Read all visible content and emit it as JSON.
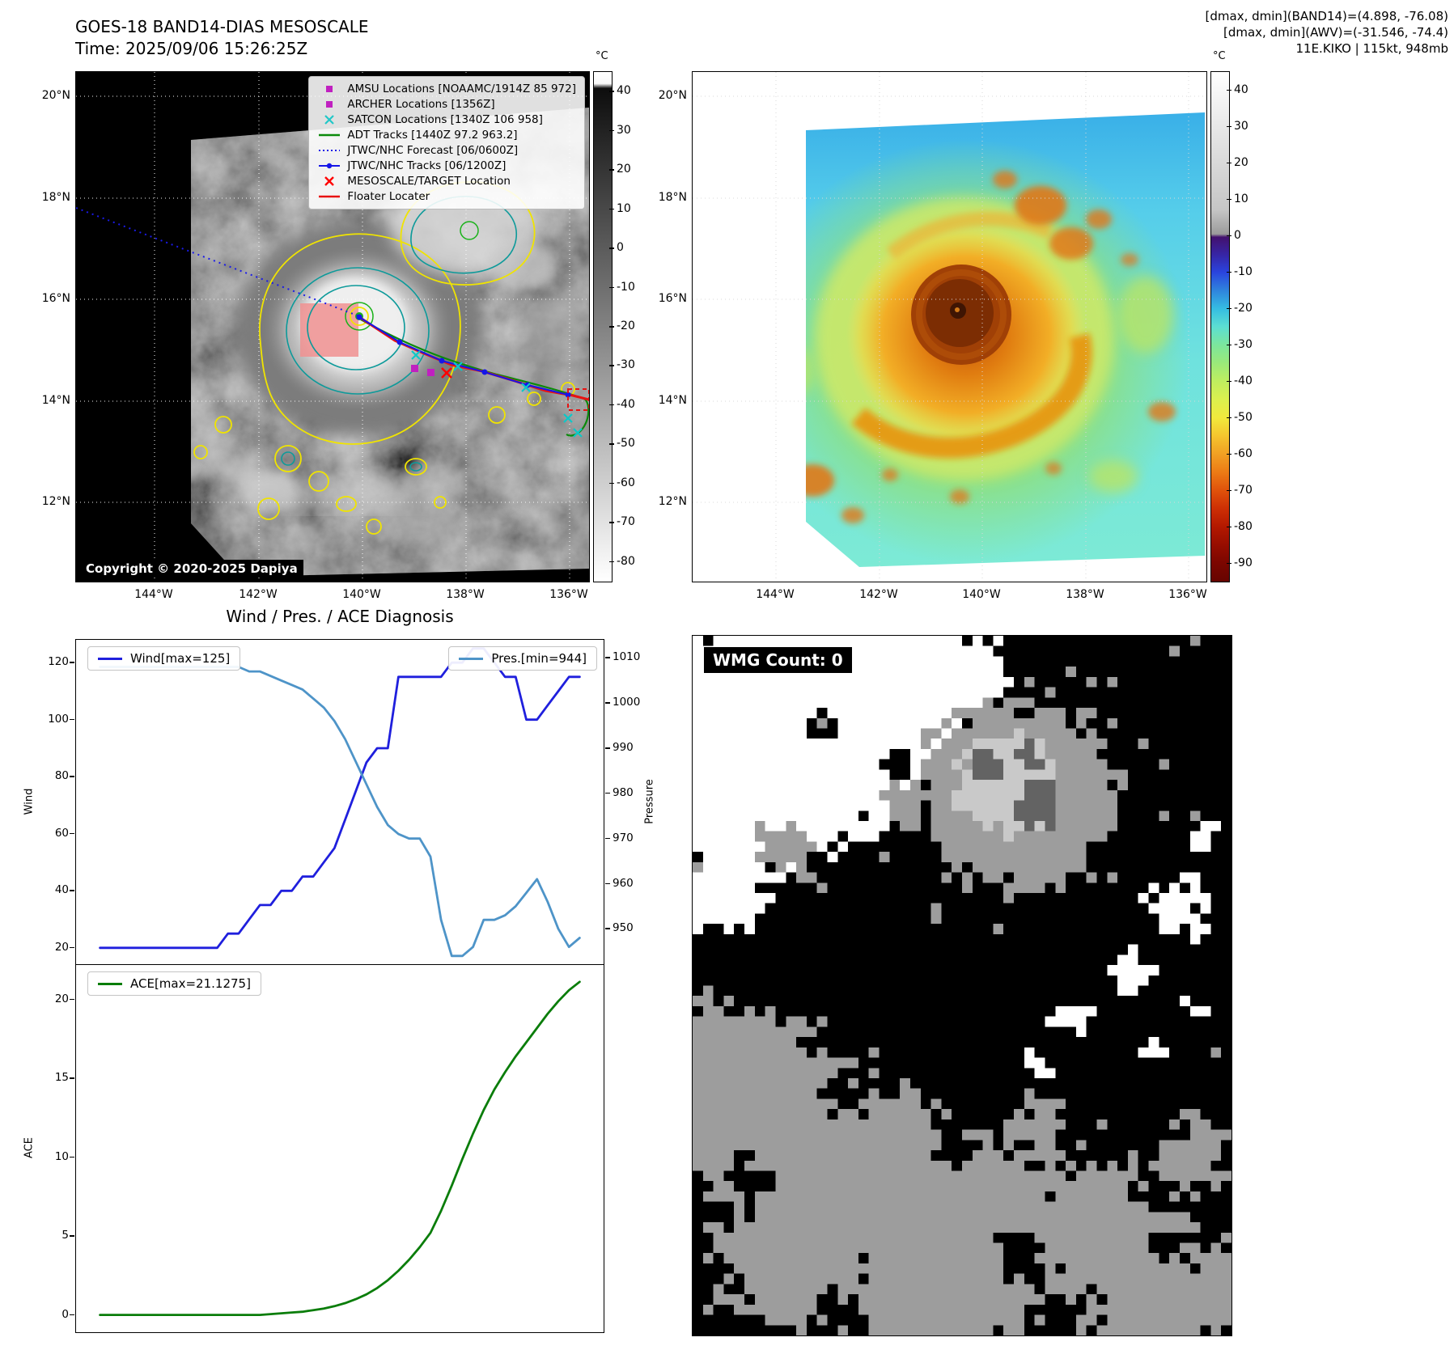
{
  "panel1": {
    "title": "GOES-18 BAND14-DIAS MESOSCALE",
    "time_label": "Time: 2025/09/06 15:26:25Z",
    "copyright": "Copyright © 2020-2025 Dapiya",
    "x_ticks": [
      "144°W",
      "142°W",
      "140°W",
      "138°W",
      "136°W"
    ],
    "y_ticks": [
      "20°N",
      "18°N",
      "16°N",
      "14°N",
      "12°N"
    ],
    "legend": [
      {
        "label": "AMSU Locations [NOAAMC/1914Z 85 972]",
        "marker": "square",
        "color": "#c020c0"
      },
      {
        "label": "ARCHER Locations [1356Z]",
        "marker": "square",
        "color": "#c020c0"
      },
      {
        "label": "SATCON Locations [1340Z 106 958]",
        "marker": "x",
        "color": "#20c8c8"
      },
      {
        "label": "ADT Tracks [1440Z 97.2 963.2]",
        "marker": "line",
        "color": "#0a8a0a"
      },
      {
        "label": "JTWC/NHC Forecast [06/0600Z]",
        "marker": "dotted-line",
        "color": "#1a1ae8"
      },
      {
        "label": "JTWC/NHC Tracks [06/1200Z]",
        "marker": "line-dot",
        "color": "#1515e8"
      },
      {
        "label": "MESOSCALE/TARGET Location",
        "marker": "x",
        "color": "#ff0000"
      },
      {
        "label": "Floater Locater",
        "marker": "line",
        "color": "#e81212"
      }
    ],
    "colorbar": {
      "unit": "°C",
      "vmax": 45,
      "vmin": -85,
      "ticks": [
        40,
        30,
        20,
        10,
        0,
        -10,
        -20,
        -30,
        -40,
        -50,
        -60,
        -70,
        -80
      ],
      "stops": [
        [
          "0%",
          "#ffffff"
        ],
        [
          "2.3%",
          "#f8f8f8"
        ],
        [
          "3.2%",
          "#0d0d0d"
        ],
        [
          "100%",
          "#ffffff"
        ]
      ]
    }
  },
  "panel2": {
    "header_lines": [
      "[dmax, dmin](BAND14)=(4.898, -76.08)",
      "[dmax, dmin](AWV)=(-31.546, -74.4)",
      "11E.KIKO | 115kt, 948mb"
    ],
    "x_ticks": [
      "144°W",
      "142°W",
      "140°W",
      "138°W",
      "136°W"
    ],
    "y_ticks": [
      "20°N",
      "18°N",
      "16°N",
      "14°N",
      "12°N"
    ],
    "colorbar": {
      "unit": "°C",
      "vmax": 45,
      "vmin": -95,
      "ticks": [
        40,
        30,
        20,
        10,
        0,
        -10,
        -20,
        -30,
        -40,
        -50,
        -60,
        -70,
        -80,
        -90
      ],
      "stops": [
        [
          "0%",
          "#ffffff"
        ],
        [
          "27%",
          "#c6c6c6"
        ],
        [
          "31.8%",
          "#9b9b9b"
        ],
        [
          "32.4%",
          "#43116e"
        ],
        [
          "36%",
          "#3626a8"
        ],
        [
          "39.3%",
          "#2a44de"
        ],
        [
          "43%",
          "#2f86dd"
        ],
        [
          "46.4%",
          "#35bce2"
        ],
        [
          "50%",
          "#5cdfd2"
        ],
        [
          "53.6%",
          "#7ce69c"
        ],
        [
          "57%",
          "#99e97b"
        ],
        [
          "60.7%",
          "#bfee5f"
        ],
        [
          "64.3%",
          "#dcf04e"
        ],
        [
          "67.9%",
          "#f1e93c"
        ],
        [
          "71.4%",
          "#f5c52e"
        ],
        [
          "75%",
          "#f1a023"
        ],
        [
          "78.6%",
          "#ec7a15"
        ],
        [
          "82.1%",
          "#e0520b"
        ],
        [
          "85.7%",
          "#cd2f04"
        ],
        [
          "89.3%",
          "#b31800"
        ],
        [
          "92.9%",
          "#960d00"
        ],
        [
          "96.4%",
          "#7b0600"
        ],
        [
          "100%",
          "#670400"
        ]
      ]
    }
  },
  "chart_data": [
    {
      "type": "line",
      "title": "Wind / Pres. / ACE Diagnosis",
      "ylabel": "Wind",
      "y2label": "Pressure",
      "ylim": [
        14,
        128
      ],
      "y2lim": [
        942,
        1014
      ],
      "yticks": [
        20,
        40,
        60,
        80,
        100,
        120
      ],
      "y2ticks": [
        950,
        960,
        970,
        980,
        990,
        1000,
        1010
      ],
      "grid": false,
      "legend_position": [
        "upper left",
        "upper right"
      ],
      "series": [
        {
          "name": "Wind[max=125]",
          "axis": "left",
          "color": "#1f1fdd",
          "values": [
            20,
            20,
            20,
            20,
            20,
            20,
            20,
            20,
            20,
            20,
            20,
            20,
            25,
            25,
            30,
            35,
            35,
            40,
            40,
            45,
            45,
            50,
            55,
            65,
            75,
            85,
            90,
            90,
            115,
            115,
            115,
            115,
            115,
            120,
            120,
            125,
            125,
            120,
            115,
            115,
            100,
            100,
            105,
            110,
            115,
            115
          ]
        },
        {
          "name": "Pres.[min=944]",
          "axis": "right",
          "color": "#4e94c8",
          "values": [
            1008,
            1008,
            1008,
            1008,
            1008,
            1008,
            1008,
            1008,
            1008,
            1008,
            1008,
            1008,
            1008,
            1008,
            1007,
            1007,
            1006,
            1005,
            1004,
            1003,
            1001,
            999,
            996,
            992,
            987,
            982,
            977,
            973,
            971,
            970,
            970,
            966,
            952,
            944,
            944,
            946,
            952,
            952,
            953,
            955,
            958,
            961,
            956,
            950,
            946,
            948
          ]
        }
      ]
    },
    {
      "type": "line",
      "ylabel": "ACE",
      "ylim": [
        -1.1,
        22.2
      ],
      "yticks": [
        0,
        5,
        10,
        15,
        20
      ],
      "grid": false,
      "legend_position": [
        "upper left"
      ],
      "series": [
        {
          "name": "ACE[max=21.1275]",
          "color": "#0a7d0a",
          "values": [
            0,
            0,
            0,
            0,
            0,
            0,
            0,
            0,
            0,
            0,
            0,
            0,
            0,
            0,
            0,
            0,
            0.05,
            0.1,
            0.15,
            0.2,
            0.3,
            0.4,
            0.55,
            0.75,
            1.0,
            1.3,
            1.7,
            2.2,
            2.8,
            3.5,
            4.3,
            5.2,
            6.6,
            8.2,
            9.9,
            11.5,
            13.0,
            14.3,
            15.4,
            16.4,
            17.3,
            18.2,
            19.1,
            19.9,
            20.6,
            21.13
          ]
        }
      ]
    }
  ],
  "panel4": {
    "wmg_label": "WMG Count: 0"
  }
}
